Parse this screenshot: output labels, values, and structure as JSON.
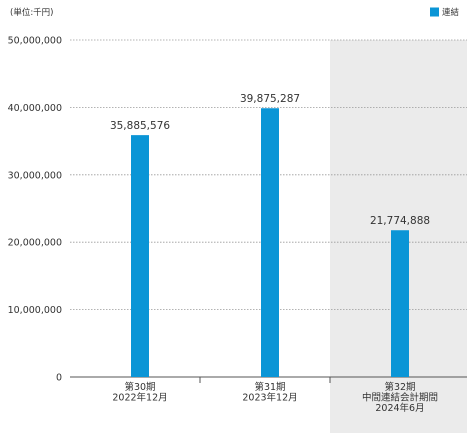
{
  "chart_data": {
    "type": "bar",
    "unit_label": "(単位:千円)",
    "legend": [
      {
        "name": "連結",
        "color": "#0a95d6"
      }
    ],
    "y_ticks": [
      "50,000,000",
      "40,000,000",
      "30,000,000",
      "20,000,000",
      "10,000,000",
      "0"
    ],
    "y_tick_values": [
      50000000,
      40000000,
      30000000,
      20000000,
      10000000,
      0
    ],
    "ylim": [
      0,
      50000000
    ],
    "grid": true,
    "categories": [
      {
        "lines": [
          "第30期",
          "2022年12月"
        ]
      },
      {
        "lines": [
          "第31期",
          "2023年12月"
        ]
      },
      {
        "lines": [
          "第32期",
          "中間連結会計期間",
          "2024年6月"
        ]
      }
    ],
    "series": [
      {
        "name": "連結",
        "color": "#0a95d6",
        "values": [
          35885576,
          39875287,
          21774888
        ],
        "value_labels": [
          "35,885,576",
          "39,875,287",
          "21,774,888"
        ]
      }
    ],
    "highlighted_category": 2,
    "highlight_color": "#ebebeb"
  }
}
